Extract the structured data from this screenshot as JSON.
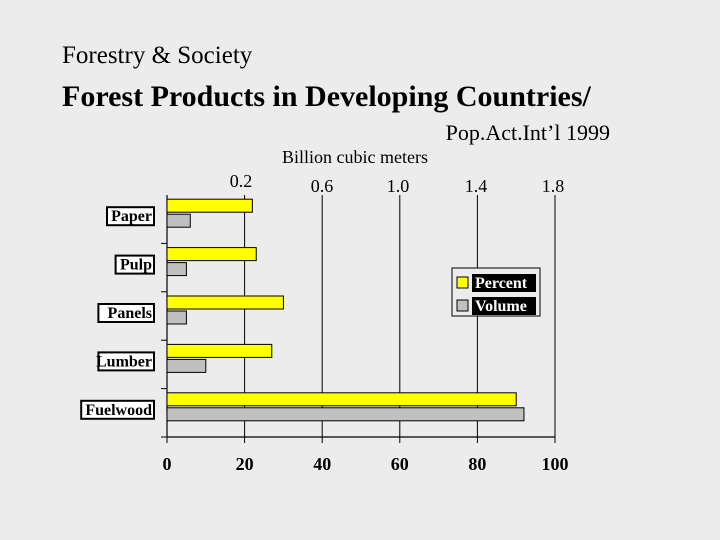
{
  "header": {
    "subtitle": "Forestry & Society",
    "title": "Forest Products in Developing Countries/",
    "source": "Pop.Act.Int’l 1999"
  },
  "chart_data": {
    "type": "bar",
    "orientation": "horizontal",
    "categories": [
      "Paper",
      "Pulp",
      "Panels",
      "Lumber",
      "Fuelwood"
    ],
    "series": [
      {
        "name": "Percent",
        "color": "#ffff00",
        "values": [
          22,
          23,
          30,
          27,
          90
        ]
      },
      {
        "name": "Volume",
        "color": "#c0c0c0",
        "values": [
          6,
          5,
          5,
          10,
          92
        ]
      }
    ],
    "xlim": [
      0,
      100
    ],
    "x_ticks": [
      0,
      20,
      40,
      60,
      80,
      100
    ],
    "top_axis": {
      "label": "Billion cubic meters",
      "ticks": [
        "0.2",
        "0.6",
        "1.0",
        "1.4",
        "1.8"
      ]
    },
    "grid": "vertical",
    "legend": "right"
  }
}
